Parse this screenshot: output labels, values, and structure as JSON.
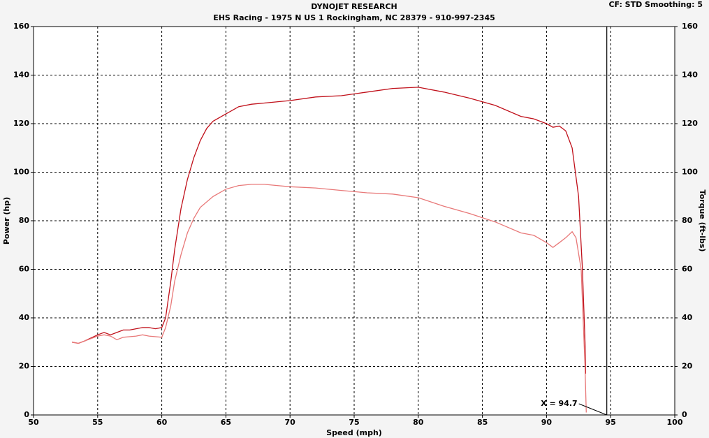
{
  "chart_data": {
    "type": "line",
    "title": "DYNOJET RESEARCH",
    "subtitle": "EHS Racing - 1975 N US 1 Rockingham, NC 28379 - 910-997-2345",
    "corner_note": "CF: STD  Smoothing: 5",
    "x_label": "Speed (mph)",
    "y_label": "Power (hp)",
    "y2_label": "Torque (ft-lbs)",
    "xlim": [
      50,
      100
    ],
    "xticks": [
      50,
      55,
      60,
      65,
      70,
      75,
      80,
      85,
      90,
      95,
      100
    ],
    "ylim": [
      0,
      160
    ],
    "yticks": [
      0,
      20,
      40,
      60,
      80,
      100,
      120,
      140,
      160
    ],
    "y2lim": [
      0,
      160
    ],
    "y2ticks": [
      0,
      20,
      40,
      60,
      80,
      100,
      120,
      140,
      160
    ],
    "grid": true,
    "cursor": {
      "value": 94.7,
      "label": "X = 94.7"
    },
    "series": [
      {
        "color": "#c0101a",
        "x": [
          53,
          53.5,
          54,
          55,
          55.5,
          56,
          56.5,
          57,
          57.5,
          58,
          58.5,
          59,
          59.5,
          60,
          60.3,
          60.7,
          61,
          61.5,
          62,
          62.5,
          63,
          63.5,
          64,
          65,
          66,
          67,
          68,
          70,
          72,
          74,
          76,
          78,
          80,
          82,
          84,
          86,
          88,
          89,
          90,
          90.5,
          91,
          91.5,
          92,
          92.5,
          92.8,
          93,
          93.05
        ],
        "values": [
          30,
          29.5,
          30.5,
          33,
          34,
          33,
          34,
          35,
          35,
          35.5,
          36,
          36,
          35.5,
          36,
          40,
          55,
          68,
          85,
          97,
          106,
          113,
          118,
          121,
          124,
          127,
          128,
          128.5,
          129.5,
          131,
          131.5,
          133,
          134.5,
          135,
          133,
          130.5,
          127.5,
          123,
          122,
          120,
          118.5,
          119,
          117,
          110,
          90,
          60,
          30,
          17
        ]
      },
      {
        "color": "#e87878",
        "x": [
          53,
          53.5,
          54,
          55,
          55.5,
          56,
          56.5,
          57,
          58,
          58.5,
          59,
          60,
          60.3,
          60.7,
          61,
          61.5,
          62,
          62.5,
          63,
          64,
          65,
          66,
          67,
          68,
          69,
          70,
          72,
          74,
          76,
          78,
          80,
          82,
          84,
          86,
          88,
          89,
          90,
          90.5,
          91,
          91.5,
          92,
          92.3,
          92.7,
          93,
          93.1
        ],
        "values": [
          30,
          29.5,
          30.5,
          32.5,
          33,
          32.5,
          31,
          32,
          32.5,
          33,
          32.5,
          32,
          36,
          45,
          55,
          66,
          75,
          81,
          85.5,
          90,
          93,
          94.5,
          95,
          95,
          94.5,
          94,
          93.5,
          92.5,
          91.5,
          91,
          89.5,
          86,
          83,
          79.5,
          75,
          74,
          71,
          69,
          71,
          73,
          75.5,
          73,
          60,
          20,
          1
        ]
      }
    ]
  }
}
